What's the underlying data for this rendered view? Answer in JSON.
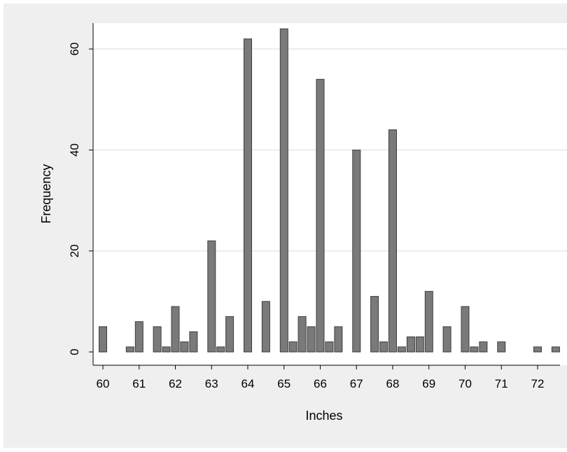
{
  "chart_data": {
    "type": "bar",
    "xlabel": "Inches",
    "ylabel": "Frequency",
    "xlim": [
      59.75,
      72.75
    ],
    "ylim": [
      0,
      66
    ],
    "x_ticks": [
      60,
      61,
      62,
      63,
      64,
      65,
      66,
      67,
      68,
      69,
      70,
      71,
      72
    ],
    "y_ticks": [
      0,
      20,
      40,
      60
    ],
    "grid": true,
    "bar_color": "#7a7a7a",
    "bar_edge_color": "#3c3c3c",
    "bars": [
      {
        "x": 60.0,
        "value": 5
      },
      {
        "x": 60.75,
        "value": 1
      },
      {
        "x": 61.0,
        "value": 6
      },
      {
        "x": 61.5,
        "value": 5
      },
      {
        "x": 61.75,
        "value": 1
      },
      {
        "x": 62.0,
        "value": 9
      },
      {
        "x": 62.25,
        "value": 2
      },
      {
        "x": 62.5,
        "value": 4
      },
      {
        "x": 63.0,
        "value": 22
      },
      {
        "x": 63.25,
        "value": 1
      },
      {
        "x": 63.5,
        "value": 7
      },
      {
        "x": 64.0,
        "value": 62
      },
      {
        "x": 64.5,
        "value": 10
      },
      {
        "x": 65.0,
        "value": 64
      },
      {
        "x": 65.25,
        "value": 2
      },
      {
        "x": 65.5,
        "value": 7
      },
      {
        "x": 65.75,
        "value": 5
      },
      {
        "x": 66.0,
        "value": 54
      },
      {
        "x": 66.25,
        "value": 2
      },
      {
        "x": 66.5,
        "value": 5
      },
      {
        "x": 67.0,
        "value": 40
      },
      {
        "x": 67.5,
        "value": 11
      },
      {
        "x": 67.75,
        "value": 2
      },
      {
        "x": 68.0,
        "value": 44
      },
      {
        "x": 68.25,
        "value": 1
      },
      {
        "x": 68.5,
        "value": 3
      },
      {
        "x": 68.75,
        "value": 3
      },
      {
        "x": 69.0,
        "value": 12
      },
      {
        "x": 69.5,
        "value": 5
      },
      {
        "x": 70.0,
        "value": 9
      },
      {
        "x": 70.25,
        "value": 1
      },
      {
        "x": 70.5,
        "value": 2
      },
      {
        "x": 71.0,
        "value": 2
      },
      {
        "x": 72.0,
        "value": 1
      },
      {
        "x": 72.5,
        "value": 1
      }
    ]
  }
}
